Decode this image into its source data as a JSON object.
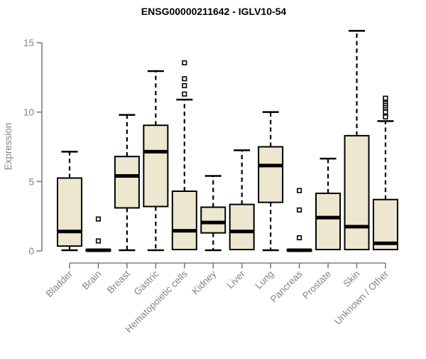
{
  "page": {
    "background": "#ffffff"
  },
  "chart_data": {
    "type": "boxplot",
    "title": "ENSG00000211642 - IGLV10-54",
    "ylabel": "Expression",
    "xlabel": "",
    "ylim": [
      0,
      15
    ],
    "yticks": [
      0,
      5,
      10,
      15
    ],
    "grid": false,
    "legend": null,
    "colors": {
      "box_fill": "#ECE7CE",
      "box_border": "#000000",
      "median": "#000000",
      "whisker": "#000000",
      "outlier_stroke": "#000000",
      "outlier_fill": "#ffffff",
      "axis": "#7e7e7e",
      "tick_text": "#848484",
      "title": "#000000"
    },
    "categories": [
      "Bladder",
      "Brain",
      "Breast",
      "Gastric",
      "Hematopoietic cells",
      "Kidney",
      "Liver",
      "Lung",
      "Pancreas",
      "Prostate",
      "Skin",
      "Unknown / Other"
    ],
    "boxes": [
      {
        "category": "Bladder",
        "low": 0.05,
        "q1": 0.35,
        "median": 1.4,
        "q3": 5.25,
        "high": 7.15,
        "outliers": []
      },
      {
        "category": "Brain",
        "low": 0.0,
        "q1": 0.0,
        "median": 0.05,
        "q3": 0.1,
        "high": 0.15,
        "outliers": [
          0.72,
          2.3
        ]
      },
      {
        "category": "Breast",
        "low": 0.05,
        "q1": 3.1,
        "median": 5.4,
        "q3": 6.8,
        "high": 9.8,
        "outliers": []
      },
      {
        "category": "Gastric",
        "low": 0.05,
        "q1": 3.2,
        "median": 7.15,
        "q3": 9.05,
        "high": 12.95,
        "outliers": []
      },
      {
        "category": "Hematopoietic cells",
        "low": 0.05,
        "q1": 0.1,
        "median": 1.45,
        "q3": 4.3,
        "high": 10.9,
        "outliers": [
          11.3,
          11.9,
          12.4,
          13.55
        ]
      },
      {
        "category": "Kidney",
        "low": 0.05,
        "q1": 1.3,
        "median": 2.05,
        "q3": 3.15,
        "high": 5.4,
        "outliers": []
      },
      {
        "category": "Liver",
        "low": 0.05,
        "q1": 0.1,
        "median": 1.4,
        "q3": 3.35,
        "high": 7.25,
        "outliers": []
      },
      {
        "category": "Lung",
        "low": 0.05,
        "q1": 3.5,
        "median": 6.15,
        "q3": 7.5,
        "high": 10.0,
        "outliers": []
      },
      {
        "category": "Pancreas",
        "low": 0.0,
        "q1": 0.0,
        "median": 0.05,
        "q3": 0.1,
        "high": 0.15,
        "outliers": [
          0.95,
          2.95,
          4.35
        ]
      },
      {
        "category": "Prostate",
        "low": 0.05,
        "q1": 0.1,
        "median": 2.4,
        "q3": 4.15,
        "high": 6.65,
        "outliers": []
      },
      {
        "category": "Skin",
        "low": 0.05,
        "q1": 0.1,
        "median": 1.75,
        "q3": 8.3,
        "high": 15.85,
        "outliers": []
      },
      {
        "category": "Unknown / Other",
        "low": 0.05,
        "q1": 0.1,
        "median": 0.55,
        "q3": 3.7,
        "high": 9.35,
        "outliers": [
          9.65,
          10.0,
          10.3,
          10.45,
          10.6,
          10.75,
          10.9,
          11.0
        ]
      }
    ]
  }
}
